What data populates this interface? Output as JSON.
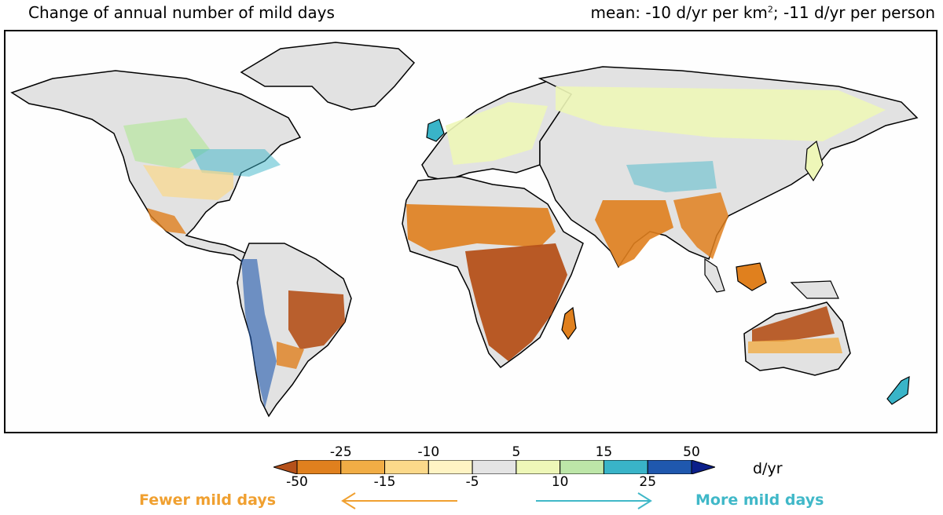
{
  "header": {
    "title": "Change of annual number of mild days",
    "mean_prefix": "mean: -10 d/yr per km",
    "mean_sup": "2",
    "mean_suffix": "; -11 d/yr per person"
  },
  "colors": {
    "land_neutral": "#e2e2e2",
    "coast": "#000000",
    "fewer_text": "#f0a030",
    "more_text": "#40b8c8"
  },
  "legend": {
    "unit": "d/yr",
    "top_ticks": [
      "-25",
      "-10",
      "5",
      "15",
      "50"
    ],
    "bottom_ticks": [
      "-50",
      "-15",
      "-5",
      "10",
      "25"
    ],
    "bins": [
      {
        "color": "#b5511a"
      },
      {
        "color": "#e0801e"
      },
      {
        "color": "#f1ad45"
      },
      {
        "color": "#fbd98a"
      },
      {
        "color": "#fff4c4"
      },
      {
        "color": "#e4e4e4"
      },
      {
        "color": "#eef7b8"
      },
      {
        "color": "#bde6a8"
      },
      {
        "color": "#39b4c8"
      },
      {
        "color": "#1f58ae"
      },
      {
        "color": "#0b1f8a"
      }
    ],
    "fewer_label": "Fewer mild days",
    "more_label": "More mild days"
  }
}
